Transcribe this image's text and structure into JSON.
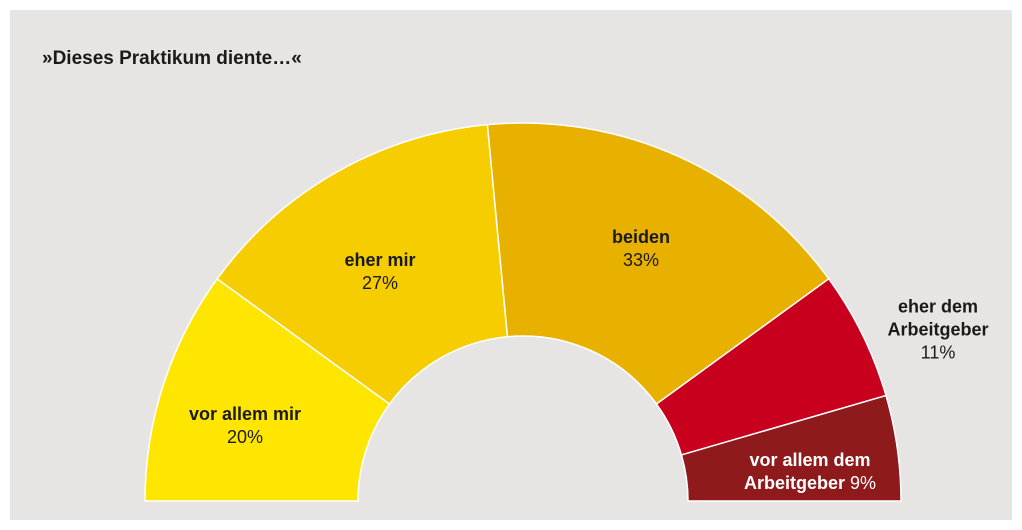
{
  "chart_data": {
    "type": "half-donut",
    "title": "»Dieses Praktikum diente…«",
    "categories": [
      "vor allem mir",
      "eher mir",
      "beiden",
      "eher dem Arbeitgeber",
      "vor allem dem Arbeitgeber"
    ],
    "values": [
      20,
      27,
      33,
      11,
      9
    ],
    "value_labels": [
      "20%",
      "27%",
      "33%",
      "11%",
      "9%"
    ],
    "colors": [
      "#ffe600",
      "#f5cd00",
      "#e8b100",
      "#c8001e",
      "#8e1a1c"
    ]
  }
}
